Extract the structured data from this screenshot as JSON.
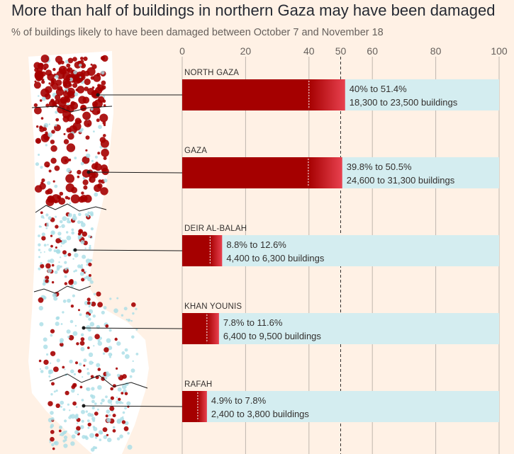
{
  "title": "More than half of buildings in northern Gaza may have been damaged",
  "subtitle": "% of buildings likely to have been damaged between October 7 and November 18",
  "colors": {
    "background": "#fff1e5",
    "bar_total": "#d4edf0",
    "bar_low": "#a50000",
    "bar_range_end": "#e8414f",
    "map_land": "#ffffff",
    "map_damage": "#a50000",
    "map_buildings": "#a9dde6"
  },
  "chart_data": {
    "type": "bar",
    "orientation": "horizontal",
    "xlim": [
      0,
      100
    ],
    "ticks": [
      "0",
      "20",
      "40",
      "50",
      "60",
      "80",
      "100"
    ],
    "reference_line": 50,
    "categories": [
      "NORTH GAZA",
      "GAZA",
      "DEIR AL-BALAH",
      "KHAN YOUNIS",
      "RAFAH"
    ],
    "series": [
      {
        "low": [
          40,
          39.8,
          8.8,
          7.8,
          4.9
        ],
        "high": [
          51.4,
          50.5,
          12.6,
          11.6,
          7.8
        ]
      }
    ],
    "range_labels": [
      "40% to 51.4%",
      "39.8% to 50.5%",
      "8.8% to 12.6%",
      "7.8% to 11.6%",
      "4.9% to 7.8%"
    ],
    "building_labels": [
      "18,300 to 23,500 buildings",
      "24,600 to 31,300 buildings",
      "4,400 to 6,300 buildings",
      "6,400 to 9,500 buildings",
      "2,400 to 3,800 buildings"
    ]
  }
}
